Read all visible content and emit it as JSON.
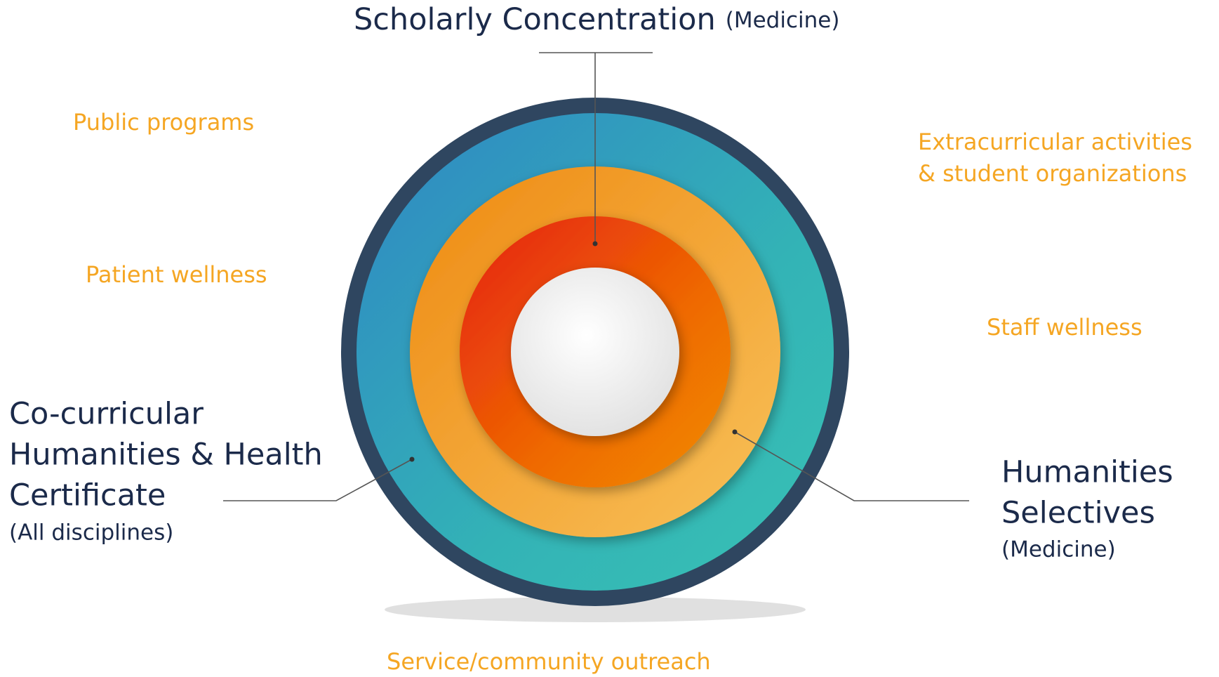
{
  "title": {
    "main": "Scholarly Concentration",
    "note": "(Medicine)"
  },
  "left_label": {
    "lines": [
      "Co-curricular",
      "Humanities & Health",
      "Certificate"
    ],
    "note": "(All disciplines)"
  },
  "right_label": {
    "lines": [
      "Humanities",
      "Selectives"
    ],
    "note": "(Medicine)"
  },
  "context_labels": {
    "public_programs": "Public programs",
    "patient_wellness": "Patient wellness",
    "extracurricular": [
      "Extracurricular activities",
      "& student organizations"
    ],
    "staff_wellness": "Staff wellness",
    "service": "Service/community outreach"
  }
}
